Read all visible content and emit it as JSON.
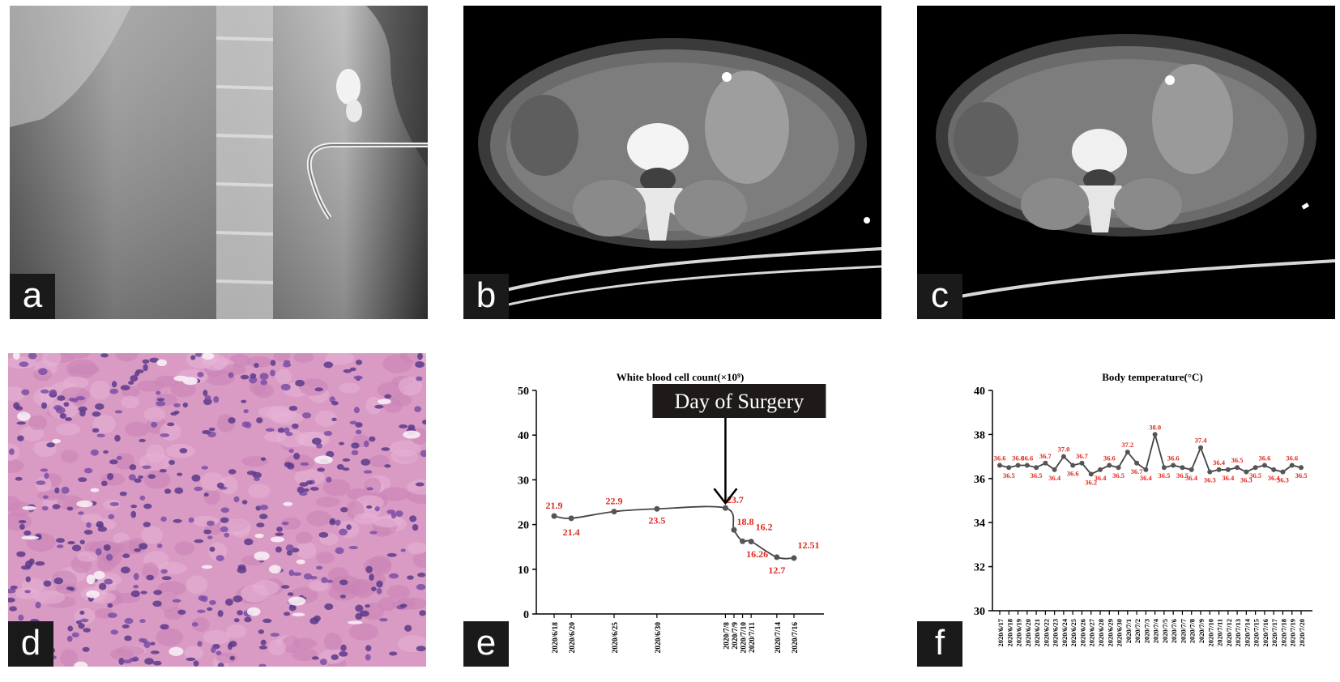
{
  "panels": {
    "a": {
      "label": "a"
    },
    "b": {
      "label": "b"
    },
    "c": {
      "label": "c"
    },
    "d": {
      "label": "d"
    },
    "e": {
      "label": "e"
    },
    "f": {
      "label": "f"
    }
  },
  "colors": {
    "data_label": "#e0281e",
    "line": "#444444",
    "axis": "#000000"
  },
  "chart_data": [
    {
      "type": "line",
      "title": "White blood cell count(×10⁹)",
      "xlabel": "",
      "ylabel": "",
      "ylim": [
        0,
        50
      ],
      "yticks": [
        "0",
        "10",
        "20",
        "30",
        "40",
        "50"
      ],
      "x": [
        "2020/6/18",
        "2020/6/20",
        "2020/6/25",
        "2020/6/30",
        "2020/7/8",
        "2020/7/9",
        "2020/7/10",
        "2020/7/11",
        "2020/7/14",
        "2020/7/16"
      ],
      "day_offsets": [
        0,
        2,
        7,
        12,
        20,
        21,
        22,
        23,
        26,
        28
      ],
      "values": [
        21.9,
        21.4,
        22.9,
        23.5,
        23.7,
        18.8,
        16.26,
        16.2,
        12.7,
        12.51
      ],
      "value_labels": [
        "21.9",
        "21.4",
        "22.9",
        "23.5",
        "23.7",
        "18.8",
        "16.26",
        "16.2",
        "12.7",
        "12.51"
      ],
      "annotation": {
        "text": "Day of Surgery",
        "at": "2020/7/8"
      }
    },
    {
      "type": "line",
      "title": "Body temperature(°C)",
      "xlabel": "",
      "ylabel": "",
      "ylim": [
        30,
        40
      ],
      "yticks": [
        "30",
        "32",
        "34",
        "36",
        "38",
        "40"
      ],
      "x": [
        "2020/6/17",
        "2020/6/18",
        "2020/6/19",
        "2020/6/20",
        "2020/6/21",
        "2020/6/22",
        "2020/6/23",
        "2020/6/24",
        "2020/6/25",
        "2020/6/26",
        "2020/6/27",
        "2020/6/28",
        "2020/6/29",
        "2020/6/30",
        "2020/7/1",
        "2020/7/2",
        "2020/7/3",
        "2020/7/4",
        "2020/7/5",
        "2020/7/6",
        "2020/7/7",
        "2020/7/8",
        "2020/7/9",
        "2020/7/10",
        "2020/7/11",
        "2020/7/12",
        "2020/7/13",
        "2020/7/14",
        "2020/7/15",
        "2020/7/16",
        "2020/7/17",
        "2020/7/18",
        "2020/7/19",
        "2020/7/20"
      ],
      "values": [
        36.6,
        36.5,
        36.6,
        36.6,
        36.5,
        36.7,
        36.4,
        37.0,
        36.6,
        36.7,
        36.2,
        36.4,
        36.6,
        36.5,
        37.2,
        36.7,
        36.4,
        38.0,
        36.5,
        36.6,
        36.5,
        36.4,
        37.4,
        36.3,
        36.4,
        36.4,
        36.5,
        36.3,
        36.5,
        36.6,
        36.4,
        36.3,
        36.6,
        36.5
      ],
      "value_labels": [
        "36.6",
        "36.5",
        "36.6",
        "36.6",
        "36.5",
        "36.7",
        "36.4",
        "37.0",
        "36.6",
        "36.7",
        "36.2",
        "36.4",
        "36.6",
        "36.5",
        "37.2",
        "36.7",
        "36.4",
        "38.0",
        "36.5",
        "36.6",
        "36.5",
        "36.4",
        "37.4",
        "36.3",
        "36.4",
        "36.4",
        "36.5",
        "36.3",
        "36.5",
        "36.6",
        "36.4",
        "36.3",
        "36.6",
        "36.5"
      ]
    }
  ]
}
